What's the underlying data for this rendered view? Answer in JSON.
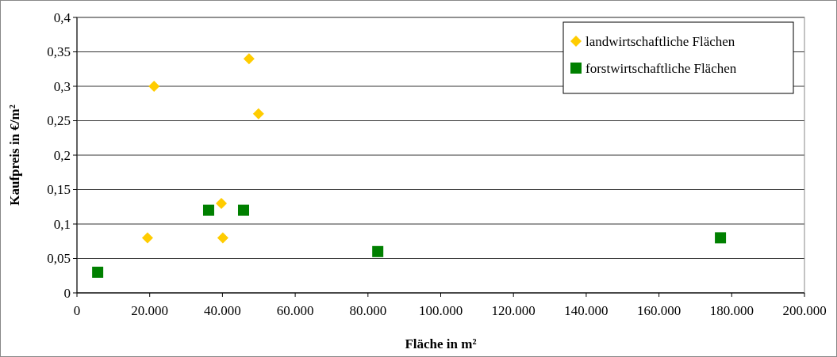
{
  "chart_data": {
    "type": "scatter",
    "xlabel": "Fläche in m²",
    "ylabel": "Kaufpreis in €/m²",
    "series": [
      {
        "name": "landwirtschaftliche Flächen",
        "color": "#ffcc00",
        "marker": "diamond",
        "x": [
          19400,
          21200,
          47300,
          49900,
          39700,
          40100
        ],
        "values": [
          0.08,
          0.3,
          0.34,
          0.26,
          0.13,
          0.08
        ]
      },
      {
        "name": "forstwirtschaftliche Flächen",
        "color": "#008000",
        "marker": "square",
        "x": [
          5700,
          36200,
          45800,
          82700,
          176900
        ],
        "values": [
          0.03,
          0.12,
          0.12,
          0.06,
          0.08
        ]
      }
    ],
    "xlim": [
      0,
      200000
    ],
    "xticks": [
      {
        "value": 0,
        "label": "0"
      },
      {
        "value": 20000,
        "label": "20.000"
      },
      {
        "value": 40000,
        "label": "40.000"
      },
      {
        "value": 60000,
        "label": "60.000"
      },
      {
        "value": 80000,
        "label": "80.000"
      },
      {
        "value": 100000,
        "label": "100.000"
      },
      {
        "value": 120000,
        "label": "120.000"
      },
      {
        "value": 140000,
        "label": "140.000"
      },
      {
        "value": 160000,
        "label": "160.000"
      },
      {
        "value": 180000,
        "label": "180.000"
      },
      {
        "value": 200000,
        "label": "200.000"
      }
    ],
    "ylim": [
      0,
      0.4
    ],
    "yticks": [
      0,
      {
        "value": 0.05,
        "label": "0,05"
      },
      {
        "value": 0.1,
        "label": "0,1"
      },
      {
        "value": 0.15,
        "label": "0,15"
      },
      {
        "value": 0.2,
        "label": "0,2"
      },
      {
        "value": 0.25,
        "label": "0,25"
      },
      {
        "value": 0.3,
        "label": "0,3"
      },
      {
        "value": 0.35,
        "label": "0,35"
      },
      {
        "value": 0.4,
        "label": "0,4"
      }
    ],
    "grid": "y",
    "legend": "top right"
  }
}
